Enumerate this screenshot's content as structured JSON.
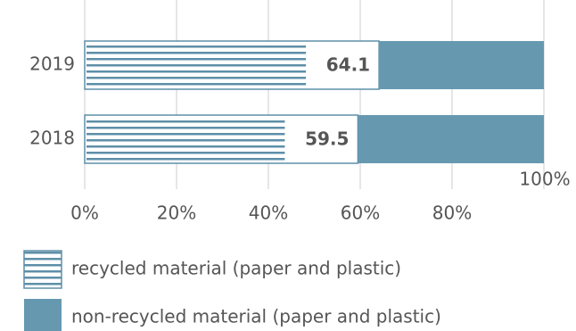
{
  "chart_data": {
    "type": "stacked-bar-horizontal",
    "categories": [
      "2019",
      "2018"
    ],
    "series": [
      {
        "name": "recycled material (paper and plastic)",
        "color": "#5e8fa8",
        "values": [
          64.1,
          59.5
        ]
      },
      {
        "name": "non-recycled material (paper and plastic)",
        "color": "#6699b0",
        "values": [
          35.9,
          40.5
        ]
      }
    ],
    "xlim": [
      0,
      100
    ],
    "xticks": [
      {
        "value": 0,
        "label": "0%"
      },
      {
        "value": 20,
        "label": "20%"
      },
      {
        "value": 40,
        "label": "40%"
      },
      {
        "value": 60,
        "label": "60%"
      },
      {
        "value": 80,
        "label": "80%"
      },
      {
        "value": 100,
        "label": "100%"
      }
    ],
    "grid": true
  }
}
